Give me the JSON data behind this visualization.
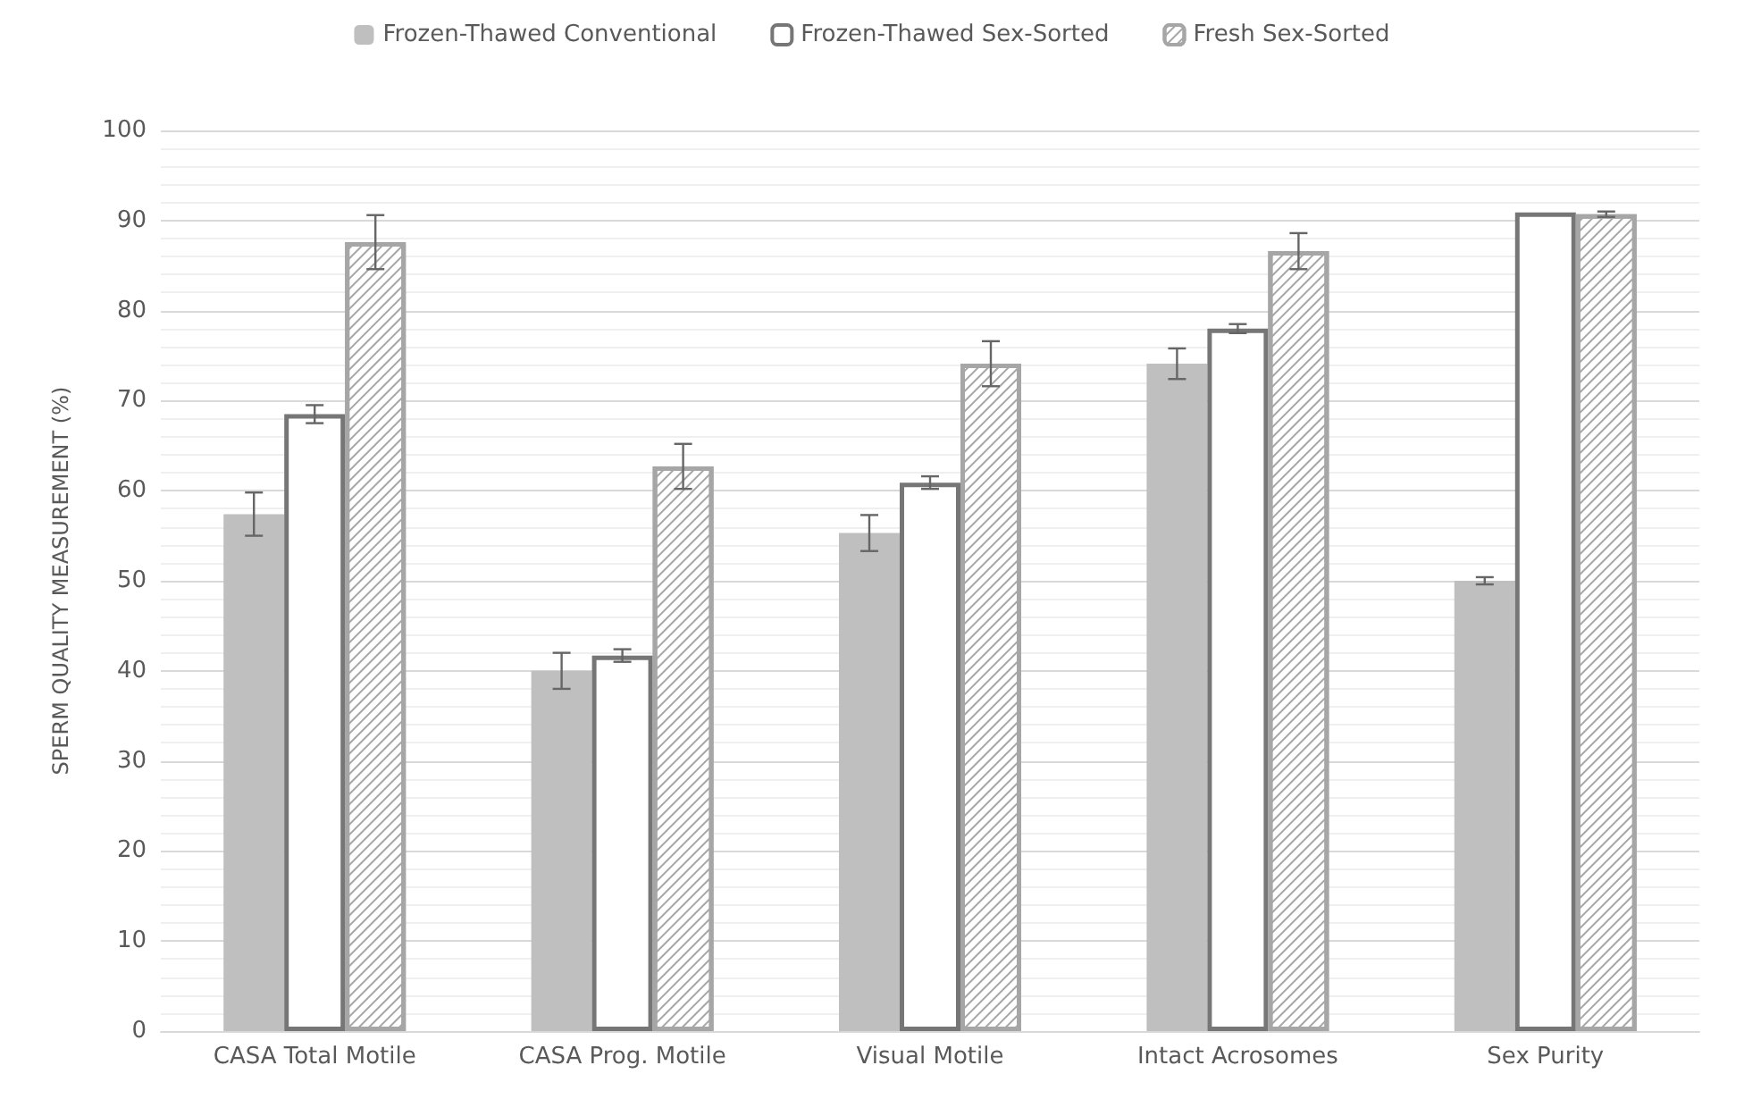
{
  "chart_data": {
    "type": "bar",
    "ylabel": "SPERM QUALITY MEASUREMENT (%)",
    "categories": [
      "CASA Total Motile",
      "CASA Prog. Motile",
      "Visual Motile",
      "Intact Acrosomes",
      "Sex Purity"
    ],
    "series": [
      {
        "name": "Frozen-Thawed Conventional",
        "color": "#bfbfbf",
        "values": [
          57.4,
          40.0,
          55.3,
          74.1,
          50.0
        ],
        "errors": [
          2.4,
          2.0,
          2.0,
          1.7,
          0.4
        ]
      },
      {
        "name": "Frozen-Thawed Sex-Sorted",
        "color": "#767676",
        "values": [
          68.5,
          41.7,
          60.9,
          78.0,
          90.9
        ],
        "errors": [
          1.0,
          0.7,
          0.7,
          0.5,
          null
        ]
      },
      {
        "name": "Fresh Sex-Sorted",
        "color": "#a6a6a6",
        "values": [
          87.6,
          62.7,
          74.1,
          86.6,
          90.7
        ],
        "errors": [
          3.0,
          2.5,
          2.5,
          2.0,
          0.3
        ]
      }
    ],
    "ylim": [
      0,
      100
    ],
    "yticks": [
      0,
      10,
      20,
      30,
      40,
      50,
      60,
      70,
      80,
      90,
      100
    ],
    "grid": "y",
    "legend": "top"
  }
}
